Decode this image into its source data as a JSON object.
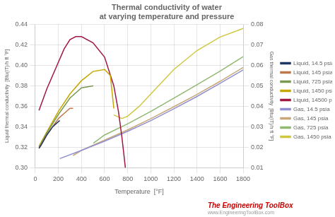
{
  "chart_data": {
    "type": "line",
    "title": "Thermal conductivity of water",
    "subtitle": "at varying temperature and pressure",
    "xlabel": "Temperature  [°F]",
    "ylabel": "Liquid thermal conductivity  [Btu(IT)/h ft °F]",
    "y2label": "Gas thermal conductivity  [Btu(IT)/h ft °F]",
    "xlim": [
      0,
      1800
    ],
    "ylim": [
      0.3,
      0.44
    ],
    "y2lim": [
      0.01,
      0.08
    ],
    "xticks": [
      0,
      200,
      400,
      600,
      800,
      1000,
      1200,
      1400,
      1600,
      1800
    ],
    "yticks": [
      {
        "value": 0.3,
        "label": "0.30"
      },
      0.32,
      0.34,
      0.36,
      0.38,
      {
        "value": 0.4,
        "label": "0.40"
      },
      0.42,
      0.44
    ],
    "y2ticks": [
      0.01,
      0.02,
      0.03,
      0.04,
      0.05,
      0.06,
      0.07,
      0.08
    ],
    "grid": true,
    "legend": "right",
    "annotations": [
      {
        "text": "The Engineering ToolBox",
        "color": "#cc0000"
      },
      {
        "text": "www.EngineeringToolBox.com",
        "color": "#999999"
      }
    ],
    "series": [
      {
        "name": "Liquid, 14.5 psia",
        "color": "#1f3864",
        "axis": "y",
        "x": [
          32,
          50,
          100,
          150,
          200,
          212
        ],
        "values": [
          0.319,
          0.322,
          0.332,
          0.34,
          0.345,
          0.346
        ]
      },
      {
        "name": "Liquid, 145 psia",
        "color": "#c0784a",
        "axis": "y",
        "x": [
          32,
          100,
          200,
          300,
          327
        ],
        "values": [
          0.319,
          0.332,
          0.348,
          0.358,
          0.358
        ]
      },
      {
        "name": "Liquid, 725 psia",
        "color": "#7a9850",
        "axis": "y",
        "x": [
          32,
          100,
          200,
          300,
          400,
          500,
          503
        ],
        "values": [
          0.32,
          0.334,
          0.352,
          0.368,
          0.378,
          0.38,
          0.38
        ]
      },
      {
        "name": "Liquid, 1450 psia",
        "color": "#c8a800",
        "axis": "y",
        "x": [
          32,
          100,
          200,
          300,
          400,
          500,
          600,
          650,
          680
        ],
        "values": [
          0.321,
          0.335,
          0.355,
          0.372,
          0.385,
          0.394,
          0.396,
          0.39,
          0.358
        ]
      },
      {
        "name": "Liquid, 14500 psia",
        "color": "#a01840",
        "axis": "y",
        "x": [
          32,
          100,
          200,
          250,
          300,
          350,
          400,
          500,
          600,
          680,
          720,
          750,
          780
        ],
        "values": [
          0.356,
          0.377,
          0.403,
          0.416,
          0.425,
          0.428,
          0.428,
          0.422,
          0.408,
          0.38,
          0.355,
          0.33,
          0.3
        ]
      },
      {
        "name": "Gas, 14.5 psia",
        "color": "#9090d0",
        "axis": "y2",
        "x": [
          212,
          400,
          600,
          800,
          1000,
          1200,
          1400,
          1600,
          1800
        ],
        "values": [
          0.0145,
          0.0185,
          0.023,
          0.0278,
          0.033,
          0.0388,
          0.0448,
          0.0512,
          0.0578
        ]
      },
      {
        "name": "Gas, 145 psia",
        "color": "#c8a878",
        "axis": "y2",
        "x": [
          327,
          400,
          600,
          800,
          1000,
          1200,
          1400,
          1600,
          1800
        ],
        "values": [
          0.016,
          0.0185,
          0.0235,
          0.0285,
          0.034,
          0.0398,
          0.0458,
          0.0522,
          0.059
        ]
      },
      {
        "name": "Gas, 725 psia",
        "color": "#90b870",
        "axis": "y2",
        "x": [
          503,
          600,
          800,
          1000,
          1200,
          1400,
          1600,
          1800
        ],
        "values": [
          0.022,
          0.026,
          0.0315,
          0.0375,
          0.044,
          0.0505,
          0.0572,
          0.0642
        ]
      },
      {
        "name": "Gas, 1450 psia",
        "color": "#d0c840",
        "axis": "y2",
        "x": [
          680,
          750,
          800,
          900,
          1000,
          1200,
          1400,
          1600,
          1800
        ],
        "values": [
          0.0358,
          0.034,
          0.0352,
          0.04,
          0.046,
          0.058,
          0.0672,
          0.0738,
          0.078
        ]
      }
    ]
  }
}
